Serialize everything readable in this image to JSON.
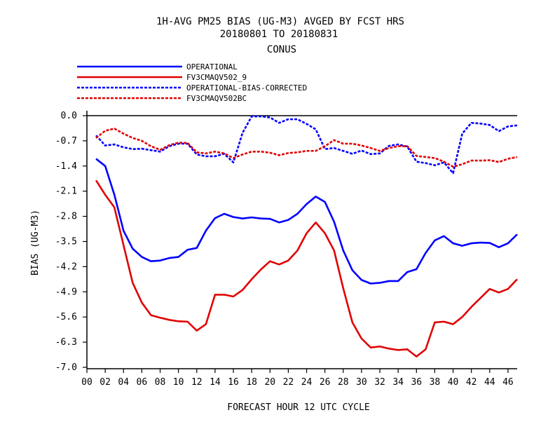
{
  "chart_data": {
    "type": "line",
    "title": "1H-AVG PM25 BIAS (UG-M3)  AVGED BY FCST HRS",
    "subtitle": "20180801 TO 20180831",
    "region": "CONUS",
    "xlabel": "FORECAST HOUR  12 UTC CYCLE",
    "ylabel": "BIAS (UG-M3)",
    "xlim": [
      0,
      47
    ],
    "ylim": [
      -7.0,
      0.0
    ],
    "x_ticks": [
      0,
      2,
      4,
      6,
      8,
      10,
      12,
      14,
      16,
      18,
      20,
      22,
      24,
      26,
      28,
      30,
      32,
      34,
      36,
      38,
      40,
      42,
      44,
      46
    ],
    "x_tick_labels": [
      "00",
      "02",
      "04",
      "06",
      "08",
      "10",
      "12",
      "14",
      "16",
      "18",
      "20",
      "22",
      "24",
      "26",
      "28",
      "30",
      "32",
      "34",
      "36",
      "38",
      "40",
      "42",
      "44",
      "46"
    ],
    "y_ticks": [
      0.0,
      -0.7,
      -1.4,
      -2.1,
      -2.8,
      -3.5,
      -4.2,
      -4.9,
      -5.6,
      -6.3,
      -7.0
    ],
    "y_tick_labels": [
      "0.0",
      "-0.7",
      "-1.4",
      "-2.1",
      "-2.8",
      "-3.5",
      "-4.2",
      "-4.9",
      "-5.6",
      "-6.3",
      "-7.0"
    ],
    "zero_line": 0.0,
    "grid": false,
    "legend_position": "top-left",
    "x": [
      1,
      2,
      3,
      4,
      5,
      6,
      7,
      8,
      9,
      10,
      11,
      12,
      13,
      14,
      15,
      16,
      17,
      18,
      19,
      20,
      21,
      22,
      23,
      24,
      25,
      26,
      27,
      28,
      29,
      30,
      31,
      32,
      33,
      34,
      35,
      36,
      37,
      38,
      39,
      40,
      41,
      42,
      43,
      44,
      45,
      46,
      47
    ],
    "series": [
      {
        "name": "OPERATIONAL",
        "color": "#0000ff",
        "dash": "solid",
        "values": [
          -1.2,
          -1.4,
          -2.2,
          -3.2,
          -3.7,
          -3.93,
          -4.05,
          -4.03,
          -3.96,
          -3.93,
          -3.73,
          -3.68,
          -3.2,
          -2.85,
          -2.73,
          -2.82,
          -2.86,
          -2.83,
          -2.86,
          -2.87,
          -2.97,
          -2.9,
          -2.73,
          -2.46,
          -2.25,
          -2.4,
          -2.95,
          -3.75,
          -4.3,
          -4.57,
          -4.67,
          -4.65,
          -4.6,
          -4.6,
          -4.35,
          -4.27,
          -3.82,
          -3.47,
          -3.35,
          -3.55,
          -3.62,
          -3.55,
          -3.53,
          -3.54,
          -3.66,
          -3.55,
          -3.3
        ]
      },
      {
        "name": "FV3CMAQV502_9",
        "color": "#e00000",
        "dash": "solid",
        "values": [
          -1.8,
          -2.2,
          -2.55,
          -3.6,
          -4.65,
          -5.2,
          -5.55,
          -5.62,
          -5.68,
          -5.72,
          -5.73,
          -5.98,
          -5.8,
          -4.98,
          -4.98,
          -5.03,
          -4.85,
          -4.55,
          -4.28,
          -4.05,
          -4.14,
          -4.03,
          -3.75,
          -3.27,
          -2.97,
          -3.27,
          -3.75,
          -4.8,
          -5.75,
          -6.2,
          -6.45,
          -6.42,
          -6.48,
          -6.52,
          -6.5,
          -6.7,
          -6.5,
          -5.75,
          -5.73,
          -5.8,
          -5.6,
          -5.32,
          -5.07,
          -4.82,
          -4.92,
          -4.82,
          -4.55
        ]
      },
      {
        "name": "OPERATIONAL-BIAS-CORRECTED",
        "color": "#0000ff",
        "dash": "dashed",
        "values": [
          -0.55,
          -0.83,
          -0.8,
          -0.88,
          -0.93,
          -0.92,
          -0.96,
          -1.0,
          -0.85,
          -0.78,
          -0.78,
          -1.08,
          -1.13,
          -1.13,
          -1.06,
          -1.3,
          -0.48,
          -0.02,
          -0.02,
          -0.05,
          -0.2,
          -0.1,
          -0.1,
          -0.23,
          -0.38,
          -0.93,
          -0.9,
          -0.98,
          -1.06,
          -0.97,
          -1.07,
          -1.05,
          -0.84,
          -0.8,
          -0.86,
          -1.28,
          -1.32,
          -1.38,
          -1.3,
          -1.6,
          -0.5,
          -0.2,
          -0.22,
          -0.26,
          -0.43,
          -0.3,
          -0.27
        ]
      },
      {
        "name": "FV3CMAQV502BC",
        "color": "#e00000",
        "dash": "dashed",
        "values": [
          -0.62,
          -0.42,
          -0.36,
          -0.5,
          -0.62,
          -0.7,
          -0.85,
          -0.95,
          -0.82,
          -0.75,
          -0.76,
          -1.02,
          -1.05,
          -1.0,
          -1.05,
          -1.18,
          -1.08,
          -1.0,
          -1.0,
          -1.03,
          -1.1,
          -1.04,
          -1.02,
          -0.98,
          -0.98,
          -0.85,
          -0.68,
          -0.78,
          -0.78,
          -0.83,
          -0.9,
          -0.98,
          -0.9,
          -0.85,
          -0.85,
          -1.12,
          -1.15,
          -1.18,
          -1.28,
          -1.42,
          -1.35,
          -1.25,
          -1.25,
          -1.24,
          -1.29,
          -1.2,
          -1.15
        ]
      }
    ]
  }
}
